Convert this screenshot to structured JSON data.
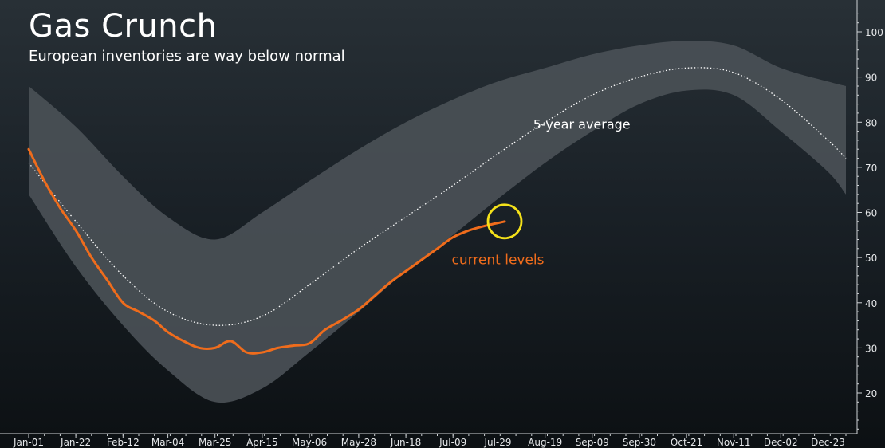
{
  "header": {
    "title": "Gas Crunch",
    "subtitle": "European inventories are way below normal"
  },
  "colors": {
    "band": "#4a5056",
    "average": "#ffffff",
    "current": "#ef6c1c",
    "highlight": "#f4e11a",
    "axis": "#cfd3d6"
  },
  "chart_data": {
    "type": "area",
    "title": "Gas Crunch",
    "subtitle": "European inventories are way below normal",
    "xlabel": "",
    "ylabel": "",
    "x_ticks": [
      "Jan-01",
      "Jan-22",
      "Feb-12",
      "Mar-04",
      "Mar-25",
      "Apr-15",
      "May-06",
      "May-28",
      "Jun-18",
      "Jul-09",
      "Jul-29",
      "Aug-19",
      "Sep-09",
      "Sep-30",
      "Oct-21",
      "Nov-11",
      "Dec-02",
      "Dec-23"
    ],
    "y_ticks": [
      20,
      30,
      40,
      50,
      60,
      70,
      80,
      90,
      100
    ],
    "ylim": [
      11,
      106
    ],
    "series": [
      {
        "name": "range",
        "style": "band",
        "x": [
          "Jan-01",
          "Jan-22",
          "Feb-12",
          "Mar-04",
          "Mar-25",
          "Apr-15",
          "May-06",
          "May-28",
          "Jun-18",
          "Jul-09",
          "Jul-29",
          "Aug-19",
          "Sep-09",
          "Sep-30",
          "Oct-21",
          "Nov-11",
          "Dec-02",
          "Dec-23",
          "Dec-31"
        ],
        "high": [
          88,
          79,
          68,
          59,
          54,
          60,
          67,
          74,
          80,
          85,
          89,
          92,
          95,
          97,
          98,
          97,
          92,
          89,
          88
        ],
        "low": [
          64,
          48,
          35,
          25,
          18,
          21,
          29,
          38,
          47,
          55,
          63,
          71,
          78,
          84,
          87,
          86,
          78,
          69,
          64
        ]
      },
      {
        "name": "5-year average",
        "style": "dotted",
        "x": [
          "Jan-01",
          "Jan-22",
          "Feb-12",
          "Mar-04",
          "Mar-25",
          "Apr-15",
          "May-06",
          "May-28",
          "Jun-18",
          "Jul-09",
          "Jul-29",
          "Aug-19",
          "Sep-09",
          "Sep-30",
          "Oct-21",
          "Nov-11",
          "Dec-02",
          "Dec-23",
          "Dec-31"
        ],
        "values": [
          71,
          58,
          46,
          38,
          35,
          37,
          44,
          52,
          59,
          66,
          73,
          80,
          86,
          90,
          92,
          91,
          85,
          76,
          72
        ]
      },
      {
        "name": "current levels",
        "style": "solid",
        "x": [
          "Jan-01",
          "Jan-08",
          "Jan-15",
          "Jan-22",
          "Jan-29",
          "Feb-05",
          "Feb-12",
          "Feb-19",
          "Feb-26",
          "Mar-04",
          "Mar-11",
          "Mar-18",
          "Mar-25",
          "Apr-01",
          "Apr-08",
          "Apr-15",
          "Apr-22",
          "Apr-29",
          "May-06",
          "May-13",
          "May-20",
          "May-28",
          "Jun-04",
          "Jun-11",
          "Jun-18",
          "Jun-25",
          "Jul-02",
          "Jul-09",
          "Jul-16",
          "Jul-23",
          "Aug-01"
        ],
        "values": [
          74,
          67,
          61,
          56,
          50,
          45,
          40,
          38,
          36,
          33.5,
          31.5,
          30,
          30,
          31.5,
          29,
          29,
          30,
          30.5,
          31,
          34,
          36,
          38.5,
          41.5,
          44.5,
          47,
          49.5,
          52,
          54.5,
          56,
          57,
          58
        ]
      }
    ],
    "annotations": [
      {
        "text": "5-year average",
        "near": "Aug-19"
      },
      {
        "text": "current levels",
        "near": "Jul-29"
      }
    ],
    "highlight_point": {
      "x": "Aug-01",
      "y": 58,
      "shape": "circle"
    },
    "grid": false,
    "legend": "none",
    "y_axis_side": "right"
  }
}
